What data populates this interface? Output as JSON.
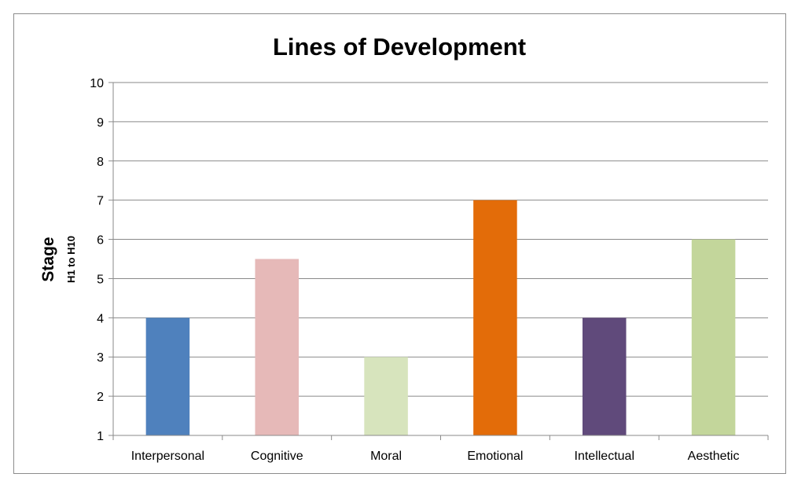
{
  "chart_data": {
    "type": "bar",
    "title": "Lines of Development",
    "ylabel": "Stage",
    "ylabel_sub": "H1 to H10",
    "xlabel": "",
    "categories": [
      "Interpersonal",
      "Cognitive",
      "Moral",
      "Emotional",
      "Intellectual",
      "Aesthetic"
    ],
    "values": [
      4,
      5.5,
      3,
      7,
      4,
      6
    ],
    "colors": [
      "#4f81bd",
      "#e6b9b8",
      "#d7e4bd",
      "#e36c09",
      "#604a7b",
      "#c3d69b"
    ],
    "ylim": [
      1,
      10
    ],
    "yticks": [
      "1",
      "2",
      "3",
      "4",
      "5",
      "6",
      "7",
      "8",
      "9",
      "10"
    ],
    "grid": true,
    "legend": "none"
  }
}
